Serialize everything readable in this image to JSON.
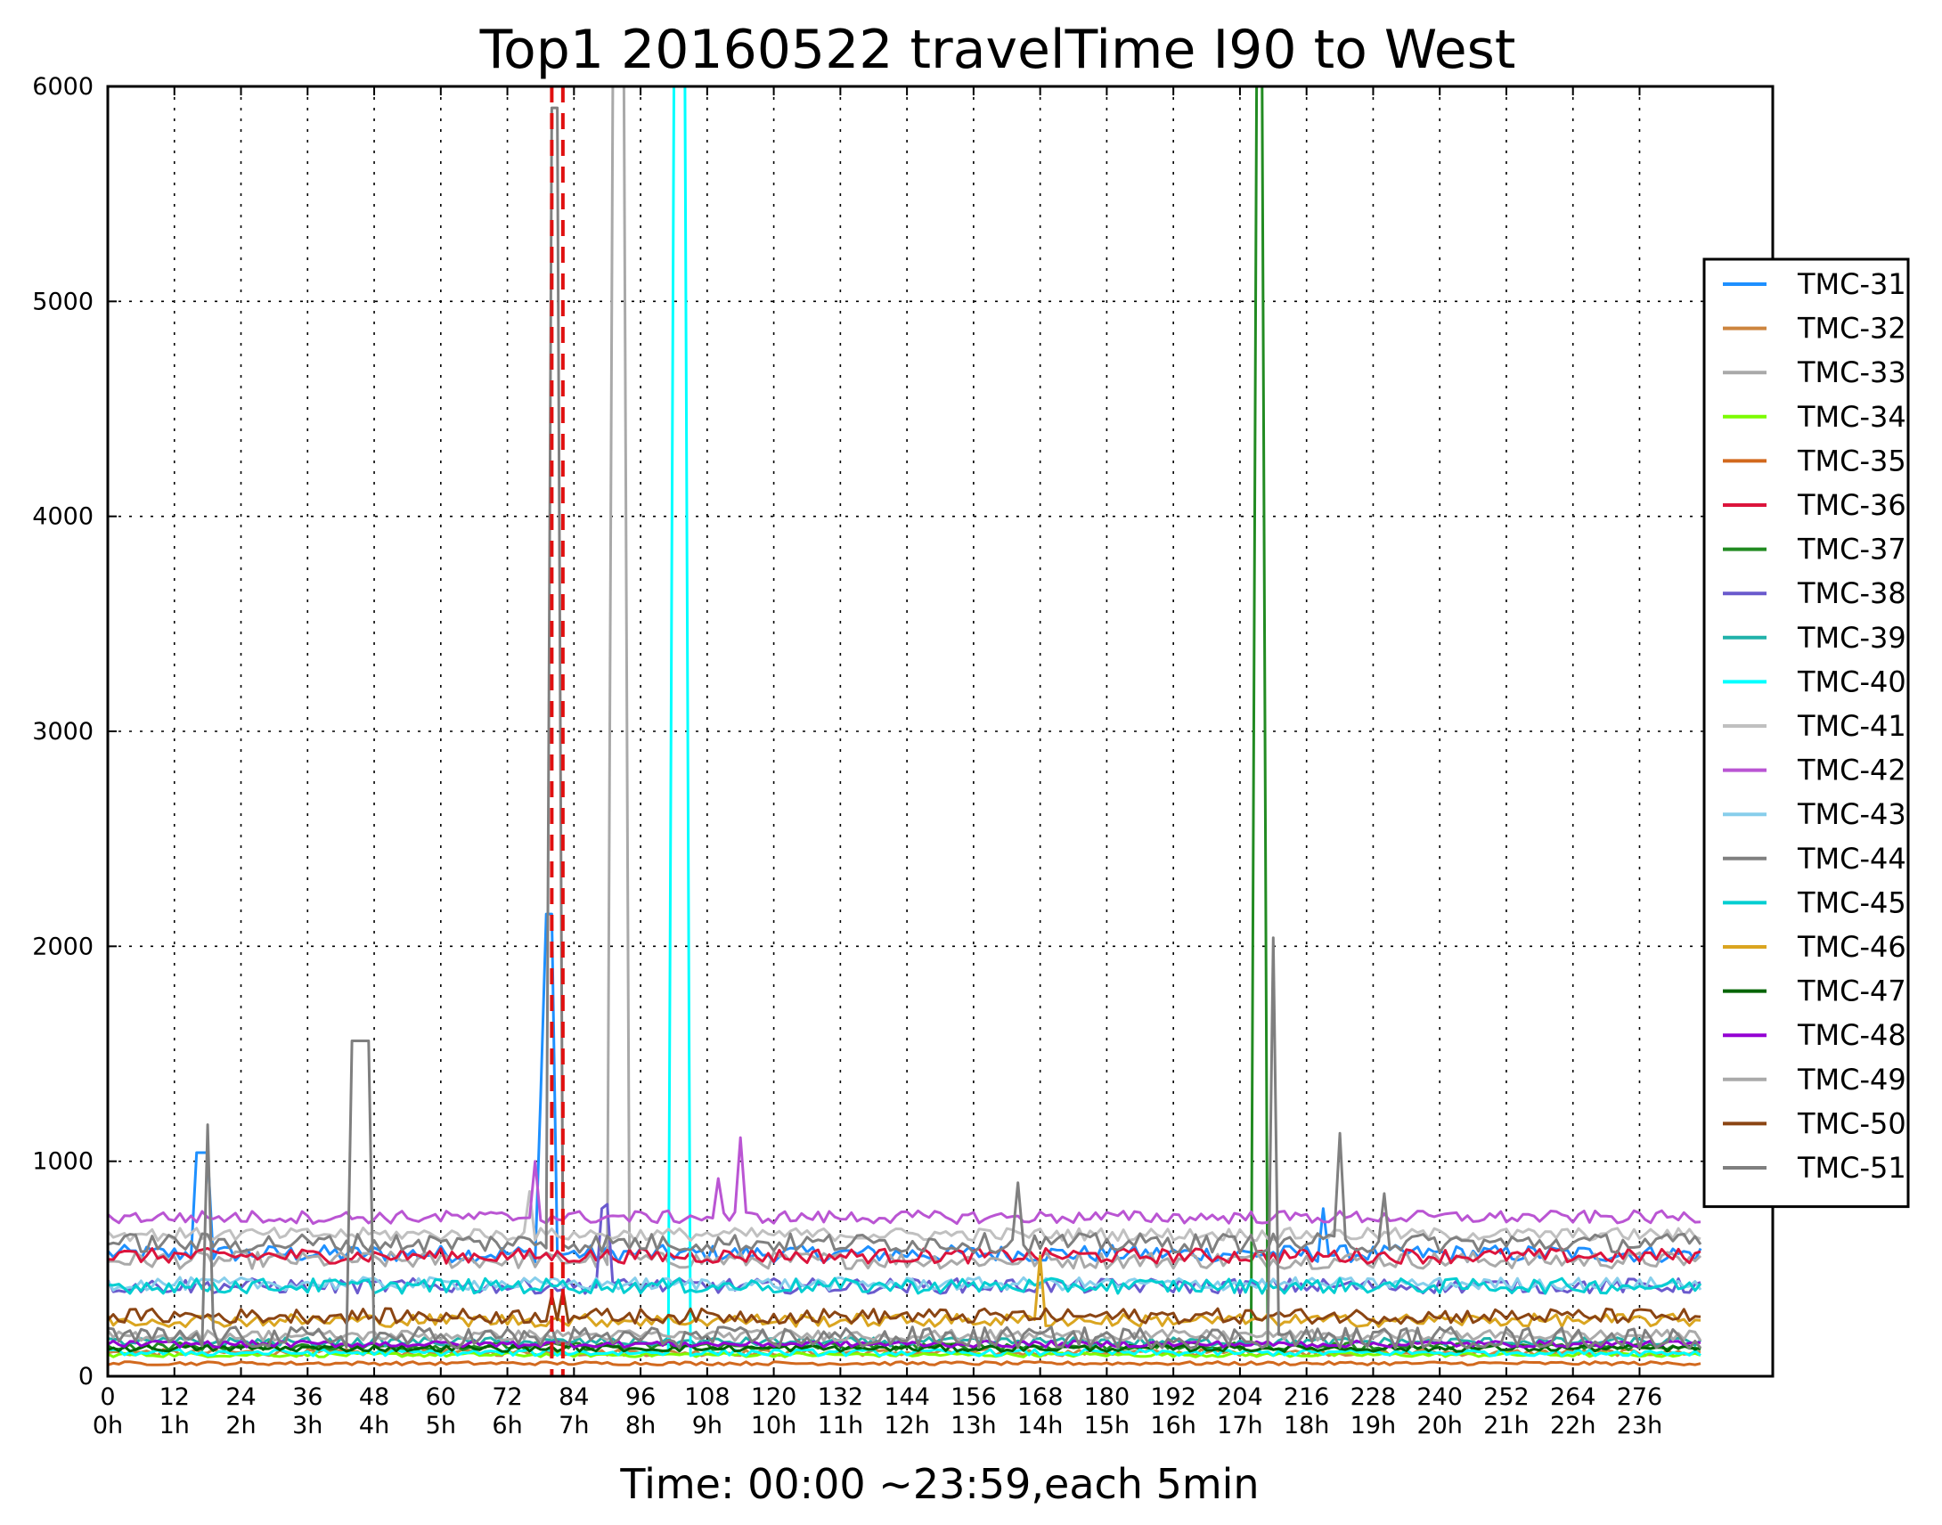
{
  "chart_data": {
    "type": "line",
    "title": "Top1 20160522 travelTime I90 to West",
    "xlabel": "Time: 00:00 ~23:59,each 5min",
    "ylabel": "",
    "xlim": [
      0,
      300
    ],
    "ylim": [
      0,
      6000
    ],
    "x_ticks": [
      0,
      12,
      24,
      36,
      48,
      60,
      72,
      84,
      96,
      108,
      120,
      132,
      144,
      156,
      168,
      180,
      192,
      204,
      216,
      228,
      240,
      252,
      264,
      276
    ],
    "x_tick_labels": [
      "0",
      "12",
      "24",
      "36",
      "48",
      "60",
      "72",
      "84",
      "96",
      "108",
      "120",
      "132",
      "144",
      "156",
      "168",
      "180",
      "192",
      "204",
      "216",
      "228",
      "240",
      "252",
      "264",
      "276"
    ],
    "x_tick_hours": [
      "0h",
      "1h",
      "2h",
      "3h",
      "4h",
      "5h",
      "6h",
      "7h",
      "8h",
      "9h",
      "10h",
      "11h",
      "12h",
      "13h",
      "14h",
      "15h",
      "16h",
      "17h",
      "18h",
      "19h",
      "20h",
      "21h",
      "22h",
      "23h"
    ],
    "y_ticks": [
      0,
      1000,
      2000,
      3000,
      4000,
      5000,
      6000
    ],
    "y_tick_labels": [
      "0",
      "1000",
      "2000",
      "3000",
      "4000",
      "5000",
      "6000"
    ],
    "grid": true,
    "legend_position": "right",
    "markers": [
      {
        "type": "vline",
        "x": [
          80,
          82
        ],
        "color": "#e01010",
        "style": "dashed"
      }
    ],
    "series": [
      {
        "name": "TMC-31",
        "color": "#1e90ff",
        "base": 570,
        "noise": 40,
        "spikes": [
          [
            16,
            1040
          ],
          [
            17,
            1040
          ],
          [
            18,
            1040
          ],
          [
            78,
            1300
          ],
          [
            79,
            2150
          ],
          [
            80,
            2150
          ],
          [
            219,
            780
          ]
        ]
      },
      {
        "name": "TMC-32",
        "color": "#cd853f",
        "base": 110,
        "noise": 15,
        "spikes": []
      },
      {
        "name": "TMC-33",
        "color": "#a9a9a9",
        "base": 540,
        "noise": 40,
        "spikes": [
          [
            91,
            6000
          ],
          [
            92,
            6000
          ],
          [
            93,
            6000
          ]
        ]
      },
      {
        "name": "TMC-34",
        "color": "#7cfc00",
        "base": 100,
        "noise": 10,
        "spikes": []
      },
      {
        "name": "TMC-35",
        "color": "#d2691e",
        "base": 60,
        "noise": 8,
        "spikes": []
      },
      {
        "name": "TMC-36",
        "color": "#dc143c",
        "base": 560,
        "noise": 35,
        "spikes": []
      },
      {
        "name": "TMC-37",
        "color": "#228b22",
        "base": 140,
        "noise": 18,
        "spikes": [
          [
            207,
            6000
          ],
          [
            208,
            6000
          ]
        ]
      },
      {
        "name": "TMC-38",
        "color": "#6a5acd",
        "base": 420,
        "noise": 35,
        "spikes": [
          [
            89,
            780
          ],
          [
            90,
            800
          ]
        ]
      },
      {
        "name": "TMC-39",
        "color": "#20b2aa",
        "base": 160,
        "noise": 20,
        "spikes": []
      },
      {
        "name": "TMC-40",
        "color": "#00ffff",
        "base": 110,
        "noise": 15,
        "spikes": [
          [
            102,
            6000
          ],
          [
            103,
            6000
          ],
          [
            104,
            6000
          ]
        ]
      },
      {
        "name": "TMC-41",
        "color": "#c0c0c0",
        "base": 660,
        "noise": 30,
        "spikes": [
          [
            76,
            860
          ]
        ]
      },
      {
        "name": "TMC-42",
        "color": "#ba55d3",
        "base": 740,
        "noise": 30,
        "spikes": [
          [
            77,
            1000
          ],
          [
            110,
            920
          ],
          [
            114,
            1110
          ]
        ]
      },
      {
        "name": "TMC-43",
        "color": "#87ceeb",
        "base": 430,
        "noise": 30,
        "spikes": []
      },
      {
        "name": "TMC-44",
        "color": "#808080",
        "base": 620,
        "noise": 45,
        "spikes": [
          [
            80,
            5900
          ],
          [
            81,
            5900
          ],
          [
            164,
            900
          ],
          [
            222,
            1130
          ],
          [
            230,
            850
          ]
        ]
      },
      {
        "name": "TMC-45",
        "color": "#00ced1",
        "base": 420,
        "noise": 35,
        "spikes": []
      },
      {
        "name": "TMC-46",
        "color": "#daa520",
        "base": 260,
        "noise": 30,
        "spikes": [
          [
            168,
            560
          ]
        ]
      },
      {
        "name": "TMC-47",
        "color": "#006400",
        "base": 130,
        "noise": 15,
        "spikes": []
      },
      {
        "name": "TMC-48",
        "color": "#9400d3",
        "base": 150,
        "noise": 15,
        "spikes": []
      },
      {
        "name": "TMC-49",
        "color": "#aaaaaa",
        "base": 190,
        "noise": 25,
        "spikes": []
      },
      {
        "name": "TMC-50",
        "color": "#8b4513",
        "base": 280,
        "noise": 35,
        "spikes": [
          [
            80,
            380
          ],
          [
            82,
            400
          ]
        ]
      },
      {
        "name": "TMC-51",
        "color": "#7f7f7f",
        "base": 180,
        "noise": 50,
        "spikes": [
          [
            18,
            1170
          ],
          [
            44,
            1560
          ],
          [
            45,
            1560
          ],
          [
            46,
            1560
          ],
          [
            47,
            1560
          ],
          [
            210,
            2040
          ]
        ]
      }
    ]
  }
}
